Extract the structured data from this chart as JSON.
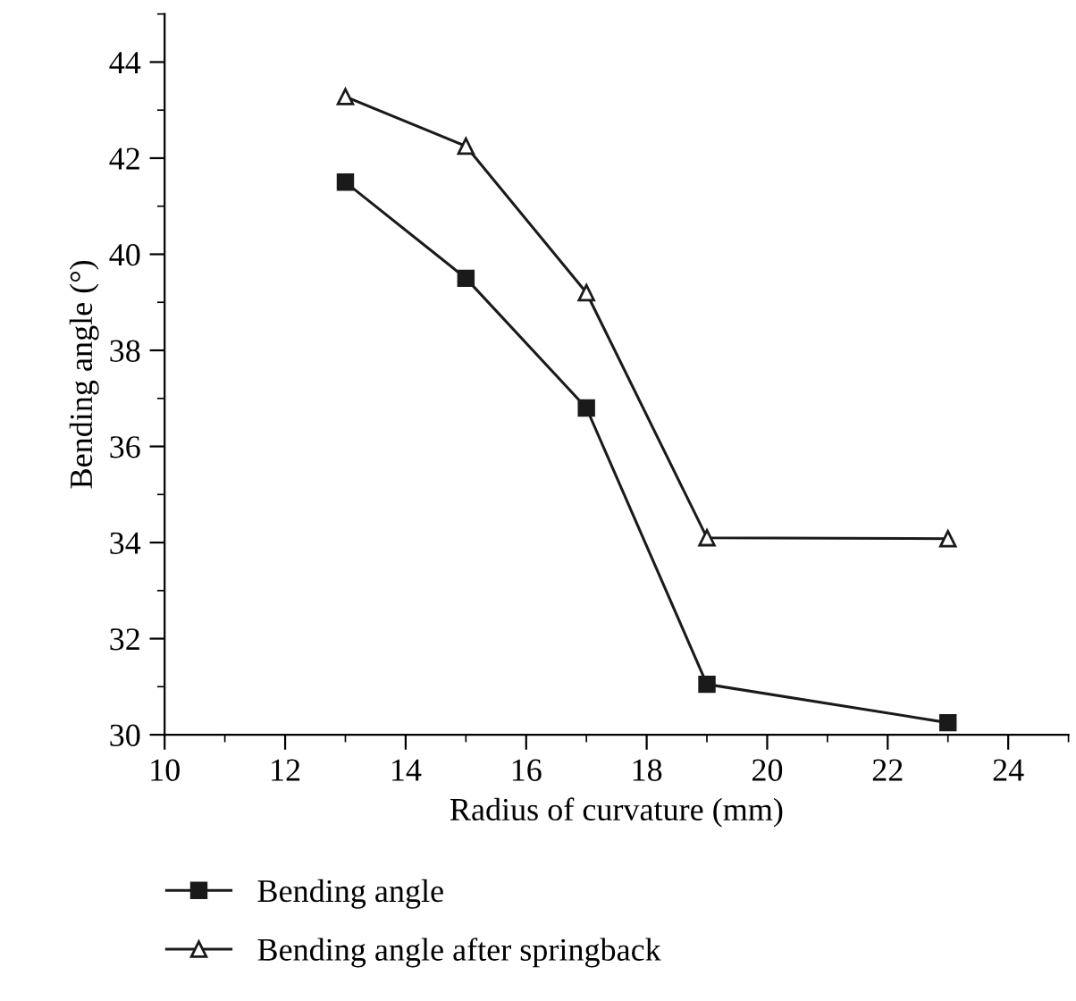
{
  "chart_data": {
    "type": "line",
    "xlabel": "Radius of curvature (mm)",
    "ylabel": "Bending angle (°)",
    "x": [
      13,
      15,
      17,
      19,
      23
    ],
    "series": [
      {
        "name": "Bending angle",
        "color": "#1a1a1a",
        "marker": "square",
        "values": [
          41.5,
          39.5,
          36.8,
          31.05,
          30.25
        ]
      },
      {
        "name": "Bending angle after springback",
        "color": "#1a1a1a",
        "marker": "triangle",
        "values": [
          43.28,
          42.25,
          39.2,
          34.1,
          34.08
        ]
      }
    ],
    "xlim": [
      10,
      25
    ],
    "xticks": [
      10,
      12,
      14,
      16,
      18,
      20,
      22,
      24
    ],
    "ylim": [
      30,
      45
    ],
    "yticks": [
      30,
      32,
      34,
      36,
      38,
      40,
      42,
      44
    ],
    "grid": false,
    "legend": "bottom left",
    "line_style": "solid"
  }
}
